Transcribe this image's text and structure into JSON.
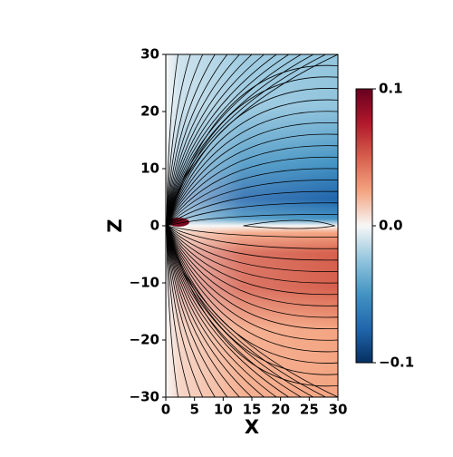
{
  "chart_data": {
    "type": "streamplot",
    "xlabel": "X",
    "ylabel": "Z",
    "xlim": [
      0,
      30
    ],
    "xticks": [
      0,
      5,
      10,
      15,
      20,
      25,
      30
    ],
    "ylim": [
      -30,
      30
    ],
    "yticks": [
      {
        "value": -30,
        "label": "−30"
      },
      {
        "value": -20,
        "label": "−20"
      },
      {
        "value": -10,
        "label": "−10"
      },
      0,
      10,
      20,
      30
    ],
    "colormap": "RdBu_r",
    "clim": [
      -0.1,
      0.1
    ],
    "cticks": [
      {
        "value": -0.1,
        "label": "−0.1"
      },
      {
        "value": 0.0,
        "label": "0.0"
      },
      0.1
    ]
  }
}
